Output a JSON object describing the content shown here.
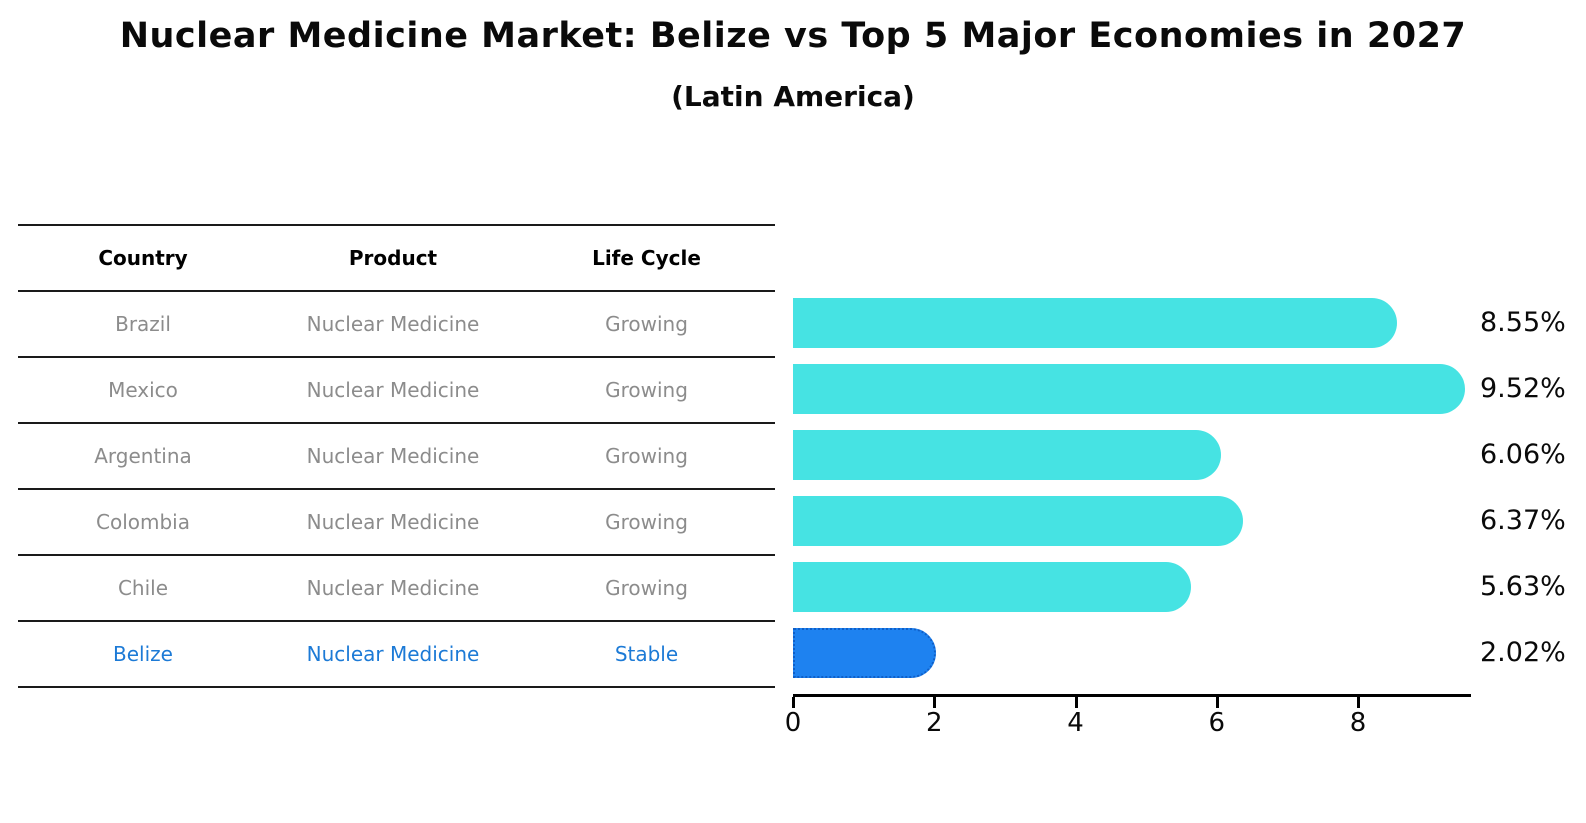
{
  "header": {
    "title": "Nuclear Medicine Market: Belize vs Top 5 Major Economies in 2027",
    "subtitle": "(Latin America)"
  },
  "table": {
    "columns": [
      "Country",
      "Product",
      "Life Cycle"
    ],
    "rows": [
      {
        "country": "Brazil",
        "product": "Nuclear Medicine",
        "life_cycle": "Growing",
        "highlight": false
      },
      {
        "country": "Mexico",
        "product": "Nuclear Medicine",
        "life_cycle": "Growing",
        "highlight": false
      },
      {
        "country": "Argentina",
        "product": "Nuclear Medicine",
        "life_cycle": "Growing",
        "highlight": false
      },
      {
        "country": "Colombia",
        "product": "Nuclear Medicine",
        "life_cycle": "Growing",
        "highlight": false
      },
      {
        "country": "Chile",
        "product": "Nuclear Medicine",
        "life_cycle": "Growing",
        "highlight": false
      },
      {
        "country": "Belize",
        "product": "Nuclear Medicine",
        "life_cycle": "Stable",
        "highlight": true
      }
    ]
  },
  "chart_data": {
    "type": "bar",
    "orientation": "horizontal",
    "categories": [
      "Brazil",
      "Mexico",
      "Argentina",
      "Colombia",
      "Chile",
      "Belize"
    ],
    "values": [
      8.55,
      9.52,
      6.06,
      6.37,
      5.63,
      2.02
    ],
    "value_labels": [
      "8.55%",
      "9.52%",
      "6.06%",
      "6.37%",
      "5.63%",
      "2.02%"
    ],
    "title": "Nuclear Medicine Market: Belize vs Top 5 Major Economies in 2027 (Latin America)",
    "xlabel": "",
    "ylabel": "",
    "xlim": [
      0,
      9.6
    ],
    "xticks": [
      0,
      2,
      4,
      6,
      8
    ],
    "grid": false,
    "legend": false,
    "bar_color": "#46e3e3",
    "highlight_category": "Belize",
    "highlight_bar_color": "#1e82f0",
    "highlight_border_color": "#0f5fc8",
    "highlight_text_color": "#1c7ad6"
  }
}
